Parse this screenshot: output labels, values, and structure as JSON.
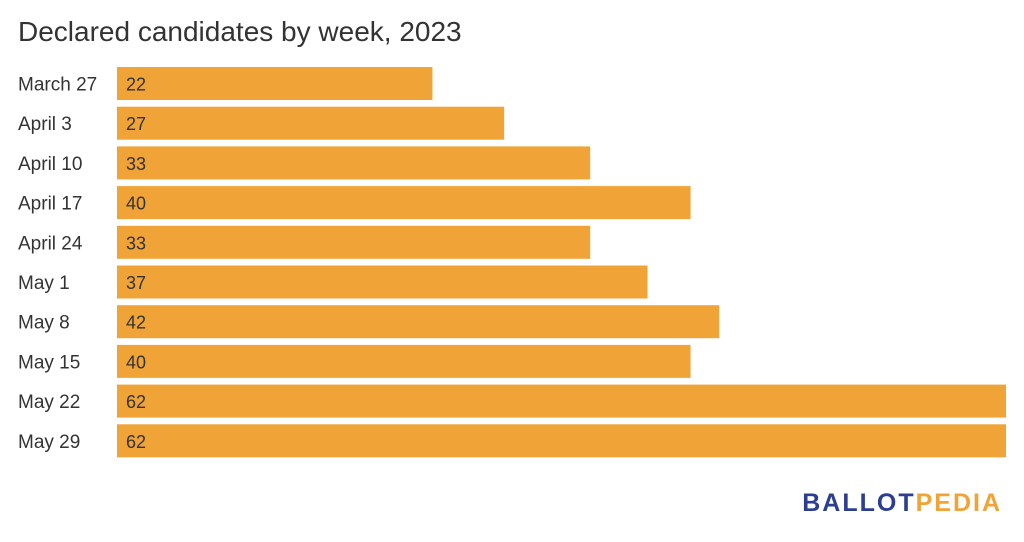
{
  "chart_data": {
    "type": "bar",
    "orientation": "horizontal",
    "title": "Declared candidates by week, 2023",
    "categories": [
      "March 27",
      "April 3",
      "April 10",
      "April 17",
      "April 24",
      "May 1",
      "May 8",
      "May 15",
      "May 22",
      "May 29"
    ],
    "values": [
      22,
      27,
      33,
      40,
      33,
      37,
      42,
      40,
      62,
      62
    ],
    "xlim": [
      0,
      62
    ],
    "grid": false,
    "legend": "none",
    "bar_color": "#f0a336"
  },
  "logo": {
    "part1": "BALLOT",
    "part2": "PEDIA",
    "color1": "#2c3e8f",
    "color2": "#f0a336"
  }
}
